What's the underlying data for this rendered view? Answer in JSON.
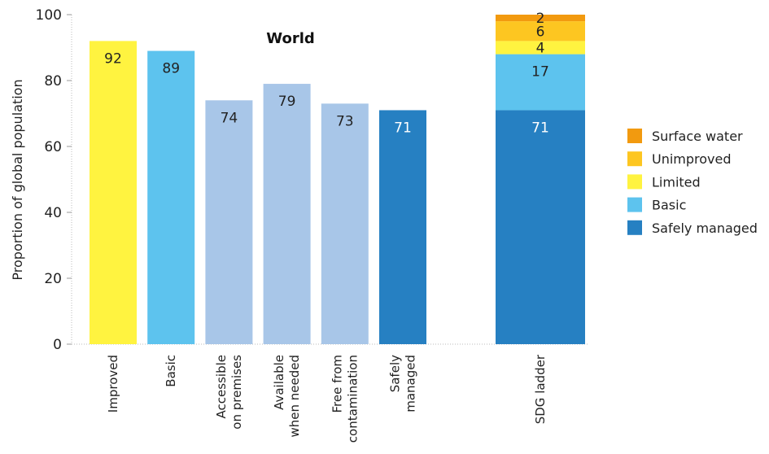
{
  "chart_data": {
    "type": "bar",
    "title": "World",
    "ylabel": "Proportion of global population",
    "xlabel": "",
    "ylim": [
      0,
      100
    ],
    "yticks": [
      0,
      20,
      40,
      60,
      80,
      100
    ],
    "grid": false,
    "legend_position": "right",
    "bars": [
      {
        "label": [
          "Improved"
        ],
        "value": 92,
        "display": "92",
        "color": "#fff340",
        "text_color": "#222222"
      },
      {
        "label": [
          "Basic"
        ],
        "value": 89,
        "display": "89",
        "color": "#5dc3ee",
        "text_color": "#222222"
      },
      {
        "label": [
          "Accessible",
          "on premises"
        ],
        "value": 74,
        "display": "74",
        "color": "#a8c6e8",
        "text_color": "#222222"
      },
      {
        "label": [
          "Available",
          "when needed"
        ],
        "value": 79,
        "display": "79",
        "color": "#a8c6e8",
        "text_color": "#222222"
      },
      {
        "label": [
          "Free from",
          "contamination"
        ],
        "value": 73,
        "display": "73",
        "color": "#a8c6e8",
        "text_color": "#222222"
      },
      {
        "label": [
          "Safely",
          "managed"
        ],
        "value": 71,
        "display": "71",
        "color": "#2680c2",
        "text_color": "#ffffff"
      }
    ],
    "stacked_bar": {
      "label": [
        "SDG ladder"
      ],
      "segments": [
        {
          "name": "Safely managed",
          "value": 71,
          "display": "71",
          "color": "#2680c2",
          "text_color": "#ffffff"
        },
        {
          "name": "Basic",
          "value": 17,
          "display": "17",
          "color": "#5dc3ee",
          "text_color": "#222222"
        },
        {
          "name": "Limited",
          "value": 4,
          "display": "4",
          "color": "#fff340",
          "text_color": "#222222"
        },
        {
          "name": "Unimproved",
          "value": 6,
          "display": "6",
          "color": "#fdc621",
          "text_color": "#222222"
        },
        {
          "name": "Surface water",
          "value": 2,
          "display": "2",
          "color": "#f29a0f",
          "text_color": "#222222"
        }
      ]
    },
    "legend": [
      {
        "name": "Surface water",
        "color": "#f29a0f"
      },
      {
        "name": "Unimproved",
        "color": "#fdc621"
      },
      {
        "name": "Limited",
        "color": "#fff340"
      },
      {
        "name": "Basic",
        "color": "#5dc3ee"
      },
      {
        "name": "Safely managed",
        "color": "#2680c2"
      }
    ]
  }
}
